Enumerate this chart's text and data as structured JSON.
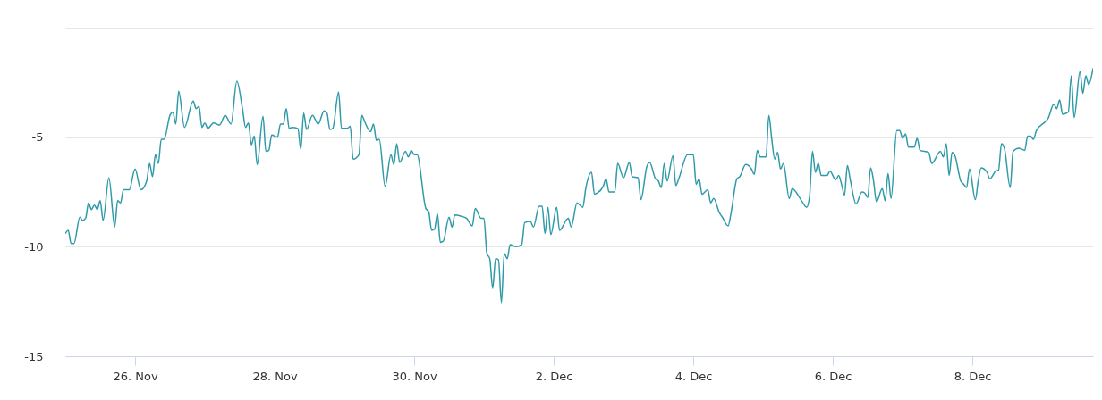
{
  "chart_data": {
    "type": "line",
    "grid": "y",
    "line_style": "solid",
    "marker": "none",
    "xlim": [
      "--11-25T00:00",
      "--12-09T17:30"
    ],
    "xticks": [
      {
        "value": "--11-26",
        "label": "26. Nov"
      },
      {
        "value": "--11-28",
        "label": "28. Nov"
      },
      {
        "value": "--11-30",
        "label": "30. Nov"
      },
      {
        "value": "--12-02",
        "label": "2. Dec"
      },
      {
        "value": "--12-04",
        "label": "4. Dec"
      },
      {
        "value": "--12-06",
        "label": "6. Dec"
      },
      {
        "value": "--12-08",
        "label": "8. Dec"
      }
    ],
    "ylim": [
      -15,
      0
    ],
    "yticks": [
      -15,
      -10,
      -5,
      {
        "value": 0,
        "label": null
      }
    ],
    "series": [
      {
        "color": "#2f9aa8",
        "x": [
          "--11-25T00:00",
          "--11-25T01:00",
          "--11-25T02:00",
          "--11-25T03:00",
          "--11-25T05:00",
          "--11-25T06:00",
          "--11-25T07:00",
          "--11-25T08:00",
          "--11-25T09:00",
          "--11-25T10:00",
          "--11-25T11:00",
          "--11-25T12:00",
          "--11-25T13:00",
          "--11-25T15:00",
          "--11-25T17:00",
          "--11-25T18:00",
          "--11-25T19:00",
          "--11-25T20:00",
          "--11-25T22:00",
          "--11-26T00:00",
          "--11-26T02:00",
          "--11-26T04:00",
          "--11-26T05:00",
          "--11-26T06:00",
          "--11-26T07:00",
          "--11-26T08:00",
          "--11-26T09:00",
          "--11-26T10:00",
          "--11-26T12:00",
          "--11-26T13:00",
          "--11-26T14:00",
          "--11-26T15:00",
          "--11-26T17:00",
          "--11-26T20:00",
          "--11-26T21:00",
          "--11-26T22:00",
          "--11-26T23:00",
          "--11-27T00:00",
          "--11-27T01:00",
          "--11-27T03:00",
          "--11-27T05:00",
          "--11-27T07:00",
          "--11-27T09:00",
          "--11-27T11:00",
          "--11-27T13:00",
          "--11-27T14:00",
          "--11-27T15:00",
          "--11-27T16:00",
          "--11-27T17:00",
          "--11-27T18:00",
          "--11-27T20:00",
          "--11-27T21:00",
          "--11-27T22:00",
          "--11-27T23:00",
          "--11-28T01:00",
          "--11-28T02:00",
          "--11-28T03:00",
          "--11-28T04:00",
          "--11-28T05:00",
          "--11-28T06:00",
          "--11-28T08:00",
          "--11-28T09:00",
          "--11-28T10:00",
          "--11-28T11:00",
          "--11-28T13:00",
          "--11-28T15:00",
          "--11-28T17:00",
          "--11-28T18:00",
          "--11-28T19:00",
          "--11-28T20:00",
          "--11-28T22:00",
          "--11-28T23:00",
          "--11-29T01:00",
          "--11-29T02:00",
          "--11-29T03:00",
          "--11-29T05:00",
          "--11-29T06:00",
          "--11-29T07:00",
          "--11-29T09:00",
          "--11-29T10:00",
          "--11-29T11:00",
          "--11-29T12:00",
          "--11-29T14:00",
          "--11-29T16:00",
          "--11-29T17:00",
          "--11-29T18:00",
          "--11-29T19:00",
          "--11-29T21:00",
          "--11-29T22:00",
          "--11-29T23:00",
          "--11-30T00:00",
          "--11-30T01:00",
          "--11-30T04:00",
          "--11-30T05:00",
          "--11-30T06:00",
          "--11-30T07:00",
          "--11-30T08:00",
          "--11-30T09:00",
          "--11-30T10:00",
          "--11-30T12:00",
          "--11-30T13:00",
          "--11-30T14:00",
          "--11-30T16:00",
          "--11-30T18:00",
          "--11-30T20:00",
          "--11-30T21:00",
          "--11-30T23:00",
          "--12-01T00:00",
          "--12-01T01:00",
          "--12-01T02:00",
          "--12-01T03:00",
          "--12-01T04:00",
          "--12-01T05:00",
          "--12-01T06:00",
          "--12-01T07:00",
          "--12-01T08:00",
          "--12-01T09:00",
          "--12-01T11:00",
          "--12-01T13:00",
          "--12-01T14:00",
          "--12-01T16:00",
          "--12-01T17:00",
          "--12-01T19:00",
          "--12-01T20:00",
          "--12-01T21:00",
          "--12-01T22:00",
          "--12-01T23:00",
          "--12-02T01:00",
          "--12-02T02:00",
          "--12-02T05:00",
          "--12-02T06:00",
          "--12-02T08:00",
          "--12-02T10:00",
          "--12-02T11:00",
          "--12-02T13:00",
          "--12-02T14:00",
          "--12-02T15:00",
          "--12-02T17:00",
          "--12-02T18:00",
          "--12-02T19:00",
          "--12-02T21:00",
          "--12-02T22:00",
          "--12-03T00:00",
          "--12-03T02:00",
          "--12-03T03:00",
          "--12-03T05:00",
          "--12-03T06:00",
          "--12-03T08:00",
          "--12-03T09:00",
          "--12-03T11:00",
          "--12-03T12:00",
          "--12-03T13:00",
          "--12-03T14:00",
          "--12-03T15:00",
          "--12-03T17:00",
          "--12-03T18:00",
          "--12-03T19:00",
          "--12-03T22:00",
          "--12-04T00:00",
          "--12-04T01:00",
          "--12-04T02:00",
          "--12-04T03:00",
          "--12-04T05:00",
          "--12-04T06:00",
          "--12-04T07:00",
          "--12-04T09:00",
          "--12-04T10:00",
          "--12-04T12:00",
          "--12-04T13:00",
          "--12-04T15:00",
          "--12-04T16:00",
          "--12-04T18:00",
          "--12-04T20:00",
          "--12-04T21:00",
          "--12-04T22:00",
          "--12-04T23:00",
          "--12-05T01:00",
          "--12-05T02:00",
          "--12-05T03:00",
          "--12-05T04:00",
          "--12-05T05:00",
          "--12-05T06:00",
          "--12-05T07:00",
          "--12-05T09:00",
          "--12-05T10:00",
          "--12-05T13:00",
          "--12-05T15:00",
          "--12-05T16:00",
          "--12-05T17:00",
          "--12-05T18:00",
          "--12-05T19:00",
          "--12-05T20:00",
          "--12-05T22:00",
          "--12-05T23:00",
          "--12-06T01:00",
          "--12-06T02:00",
          "--12-06T03:00",
          "--12-06T04:00",
          "--12-06T05:00",
          "--12-06T06:00",
          "--12-06T08:00",
          "--12-06T10:00",
          "--12-06T11:00",
          "--12-06T12:00",
          "--12-06T13:00",
          "--12-06T14:00",
          "--12-06T15:00",
          "--12-06T17:00",
          "--12-06T18:00",
          "--12-06T19:00",
          "--12-06T20:00",
          "--12-06T22:00",
          "--12-06T23:00",
          "--12-07T00:00",
          "--12-07T01:00",
          "--12-07T02:00",
          "--12-07T04:00",
          "--12-07T05:00",
          "--12-07T06:00",
          "--12-07T09:00",
          "--12-07T10:00",
          "--12-07T13:00",
          "--12-07T14:00",
          "--12-07T15:00",
          "--12-07T16:00",
          "--12-07T17:00",
          "--12-07T18:00",
          "--12-07T20:00",
          "--12-07T21:00",
          "--12-07T22:00",
          "--12-07T23:00",
          "--12-08T01:00",
          "--12-08T02:00",
          "--12-08T03:00",
          "--12-08T05:00",
          "--12-08T06:00",
          "--12-08T08:00",
          "--12-08T09:00",
          "--12-08T10:00",
          "--12-08T11:00",
          "--12-08T13:00",
          "--12-08T14:00",
          "--12-08T16:00",
          "--12-08T17:00",
          "--12-08T18:00",
          "--12-08T19:00",
          "--12-08T20:00",
          "--12-08T21:00",
          "--12-08T22:00",
          "--12-09T01:00",
          "--12-09T02:00",
          "--12-09T04:00",
          "--12-09T05:00",
          "--12-09T06:00",
          "--12-09T07:00",
          "--12-09T09:00",
          "--12-09T10:00",
          "--12-09T11:00",
          "--12-09T13:00",
          "--12-09T14:00",
          "--12-09T15:00",
          "--12-09T16:00",
          "--12-09T17:30"
        ],
        "values": [
          -9.4,
          -9.25,
          -9.85,
          -9.85,
          -8.65,
          -8.8,
          -8.7,
          -8.0,
          -8.3,
          -8.1,
          -8.3,
          -7.9,
          -8.8,
          -6.85,
          -9.1,
          -7.9,
          -8.0,
          -7.4,
          -7.4,
          -6.45,
          -7.4,
          -7.0,
          -6.2,
          -6.8,
          -5.8,
          -6.2,
          -5.1,
          -5.1,
          -4.0,
          -3.85,
          -4.4,
          -2.9,
          -4.55,
          -3.35,
          -3.7,
          -3.6,
          -4.55,
          -4.35,
          -4.6,
          -4.35,
          -4.45,
          -4.0,
          -4.4,
          -2.45,
          -3.75,
          -4.55,
          -4.35,
          -5.35,
          -4.95,
          -6.25,
          -4.05,
          -5.65,
          -5.6,
          -4.9,
          -5.0,
          -4.4,
          -4.4,
          -3.7,
          -4.6,
          -4.55,
          -4.6,
          -5.55,
          -3.9,
          -4.65,
          -4.0,
          -4.4,
          -3.8,
          -3.9,
          -4.65,
          -4.6,
          -2.95,
          -4.6,
          -4.6,
          -4.5,
          -6.0,
          -5.8,
          -4.0,
          -4.3,
          -4.75,
          -4.4,
          -5.15,
          -5.1,
          -7.25,
          -5.8,
          -6.25,
          -5.3,
          -6.15,
          -5.65,
          -5.9,
          -5.6,
          -5.8,
          -5.8,
          -8.25,
          -8.4,
          -9.25,
          -9.2,
          -8.5,
          -9.8,
          -9.75,
          -8.65,
          -9.1,
          -8.55,
          -8.6,
          -8.7,
          -9.05,
          -8.25,
          -8.7,
          -8.7,
          -10.3,
          -10.55,
          -11.9,
          -10.55,
          -10.6,
          -12.55,
          -10.3,
          -10.55,
          -9.9,
          -10.0,
          -9.9,
          -8.9,
          -8.85,
          -9.1,
          -8.15,
          -8.15,
          -9.4,
          -8.2,
          -9.45,
          -8.2,
          -9.25,
          -8.7,
          -9.1,
          -8.0,
          -8.2,
          -7.35,
          -6.6,
          -7.6,
          -7.55,
          -7.25,
          -6.9,
          -7.5,
          -7.5,
          -6.2,
          -6.85,
          -6.15,
          -6.8,
          -6.85,
          -7.85,
          -6.35,
          -6.15,
          -6.9,
          -7.0,
          -7.3,
          -6.2,
          -7.0,
          -5.85,
          -7.2,
          -6.9,
          -5.8,
          -5.8,
          -7.15,
          -6.9,
          -7.6,
          -7.4,
          -8.0,
          -7.8,
          -8.45,
          -8.65,
          -9.05,
          -8.45,
          -6.9,
          -6.8,
          -6.25,
          -6.45,
          -6.7,
          -5.6,
          -5.9,
          -5.9,
          -4.0,
          -5.1,
          -6.0,
          -5.7,
          -6.45,
          -6.2,
          -7.8,
          -7.35,
          -7.85,
          -8.2,
          -7.7,
          -5.65,
          -6.6,
          -6.2,
          -6.75,
          -6.75,
          -6.55,
          -6.95,
          -6.75,
          -7.15,
          -7.65,
          -6.3,
          -6.95,
          -8.05,
          -7.5,
          -7.55,
          -7.75,
          -6.4,
          -7.0,
          -7.95,
          -7.35,
          -7.9,
          -6.65,
          -7.8,
          -4.7,
          -4.7,
          -5.05,
          -4.85,
          -5.45,
          -5.45,
          -5.05,
          -5.6,
          -5.7,
          -6.2,
          -5.65,
          -5.9,
          -5.3,
          -6.75,
          -5.7,
          -5.85,
          -7.0,
          -7.15,
          -7.3,
          -6.45,
          -7.85,
          -7.0,
          -6.4,
          -6.6,
          -6.9,
          -6.55,
          -6.5,
          -5.3,
          -5.5,
          -7.3,
          -5.65,
          -5.5,
          -5.55,
          -5.6,
          -4.95,
          -4.95,
          -5.1,
          -4.7,
          -4.3,
          -4.15,
          -3.5,
          -3.7,
          -3.3,
          -3.95,
          -3.85,
          -2.2,
          -4.1,
          -2.0,
          -3.0,
          -2.2,
          -2.6,
          -1.85
        ]
      }
    ]
  }
}
